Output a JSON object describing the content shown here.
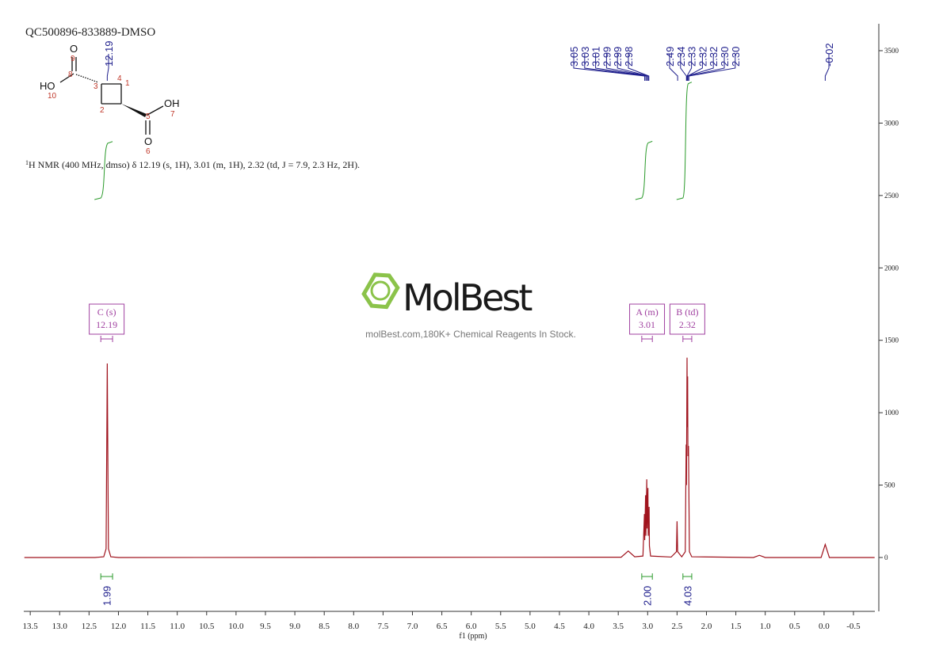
{
  "title": "QC500896-833889-DMSO",
  "structure": {
    "labels": [
      "O",
      "9",
      "8",
      "HO",
      "10",
      "3",
      "4",
      "2",
      "1",
      "5",
      "OH",
      "7",
      "O",
      "6"
    ]
  },
  "description": {
    "sup": "1",
    "text": "H NMR (400 MHz, dmso) δ 12.19 (s, 1H), 3.01 (m, 1H), 2.32 (td, J = 7.9, 2.3 Hz, 2H)."
  },
  "watermark": {
    "brand": "MolBest",
    "tagline": "molBest.com,180K+ Chemical Reagents In Stock."
  },
  "chart_data": {
    "type": "line",
    "x_label": "f1 (ppm)",
    "color": "#a0141e",
    "xlim": [
      13.61,
      -0.864
    ],
    "xticks": [
      13.5,
      {
        "value": 13,
        "label": "13.0"
      },
      12.5,
      {
        "value": 12,
        "label": "12.0"
      },
      11.5,
      {
        "value": 11,
        "label": "11.0"
      },
      10.5,
      {
        "value": 10,
        "label": "10.0"
      },
      9.5,
      {
        "value": 9,
        "label": "9.0"
      },
      8.5,
      {
        "value": 8,
        "label": "8.0"
      },
      7.5,
      {
        "value": 7,
        "label": "7.0"
      },
      6.5,
      {
        "value": 6,
        "label": "6.0"
      },
      5.5,
      {
        "value": 5,
        "label": "5.0"
      },
      4.5,
      {
        "value": 4,
        "label": "4.0"
      },
      3.5,
      {
        "value": 3,
        "label": "3.0"
      },
      2.5,
      {
        "value": 2,
        "label": "2.0"
      },
      1.5,
      {
        "value": 1,
        "label": "1.0"
      },
      0.5,
      {
        "value": 0,
        "label": "0.0"
      },
      -0.5
    ],
    "ylim": [
      -372,
      3686
    ],
    "yticks": [
      0,
      500,
      1000,
      1500,
      2000,
      2500,
      3000,
      3500
    ],
    "y_axis_side": "right",
    "x": [
      13.6,
      12.4,
      12.25,
      12.21,
      12.195,
      12.19,
      12.185,
      12.17,
      12.13,
      12.0,
      3.45,
      3.33,
      3.22,
      3.08,
      3.055,
      3.05,
      3.035,
      3.03,
      3.015,
      3.01,
      2.995,
      2.99,
      2.975,
      2.97,
      2.95,
      2.6,
      2.51,
      2.5,
      2.49,
      2.42,
      2.36,
      2.345,
      2.34,
      2.33,
      2.325,
      2.32,
      2.315,
      2.305,
      2.29,
      2.25,
      1.2,
      1.1,
      1.0,
      0.05,
      -0.02,
      -0.09,
      -0.86
    ],
    "values": [
      0,
      0,
      5,
      60,
      1000,
      1340,
      1000,
      60,
      5,
      0,
      2,
      45,
      5,
      10,
      300,
      120,
      430,
      150,
      540,
      200,
      480,
      150,
      350,
      80,
      10,
      3,
      40,
      250,
      40,
      5,
      40,
      780,
      500,
      1380,
      900,
      1250,
      700,
      770,
      40,
      5,
      0,
      15,
      0,
      0,
      90,
      0,
      0
    ],
    "peaks": {
      "color": "#1e1e8c",
      "values": [
        12.19,
        3.05,
        3.03,
        3.01,
        2.99,
        2.99,
        2.98,
        2.49,
        2.34,
        2.33,
        2.32,
        2.32,
        2.3,
        2.3,
        -0.02
      ],
      "value_labels": [
        "12.19",
        "3.05",
        "3.03",
        "3.01",
        "2.99",
        "2.99",
        "2.98",
        "2.49",
        "2.34",
        "2.33",
        "2.32",
        "2.32",
        "2.30",
        "2.30",
        "-0.02"
      ]
    },
    "integrals": {
      "color": "#2a9a2a",
      "ranges": [
        [
          12.3,
          12.1
        ],
        [
          3.1,
          2.92
        ],
        [
          2.4,
          2.25
        ]
      ],
      "values": [
        1.99,
        2.0,
        4.03
      ],
      "value_labels": [
        "1.99",
        "2.00",
        "4.03"
      ]
    },
    "multiplets": {
      "color": "#a040a0",
      "labels": [
        "C (s)",
        "A (m)",
        "B (td)"
      ],
      "shifts": [
        12.19,
        3.01,
        2.32
      ]
    }
  }
}
